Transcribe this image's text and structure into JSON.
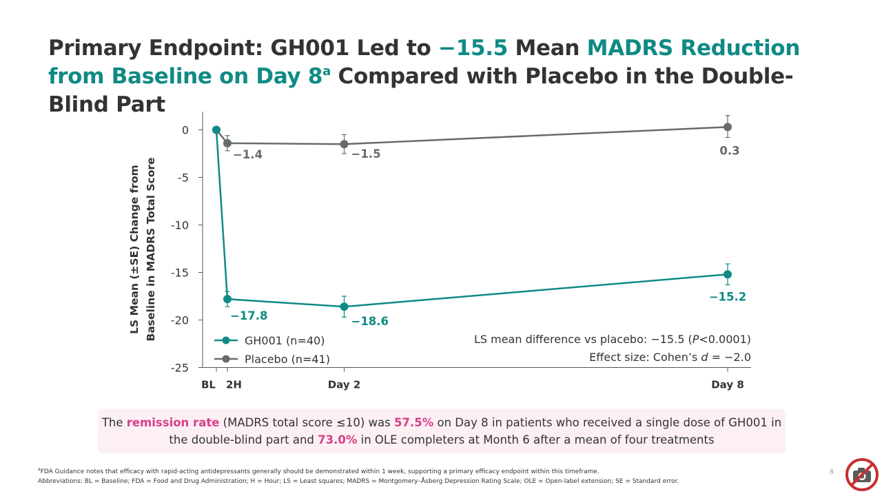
{
  "slide": {
    "title": {
      "part1": "Primary Endpoint: GH001 Led to ",
      "part2": "−15.5",
      "part3": " Mean ",
      "part4": "MADRS Reduction from Baseline on Day 8",
      "sup": "a",
      "part5": " Compared with Placebo in the Double-Blind Part"
    },
    "callout": {
      "t1": "The ",
      "t2": "remission rate",
      "t3": " (MADRS total score ≤10) was ",
      "t4": "57.5%",
      "t5": " on Day 8 in patients who received a single dose of GH001 in the double-blind part and ",
      "t6": "73.0%",
      "t7": " in OLE completers at Month 6 after a mean of four treatments"
    },
    "footnote_sup": "a",
    "footnote_a": "FDA Guidance notes that efficacy with rapid-acting antidepressants generally should be demonstrated within 1 week, supporting a primary efficacy endpoint within this timeframe.",
    "abbreviations": "Abbreviations: BL = Baseline; FDA = Food and Drug Administration; H = Hour; LS = Least squares; MADRS = Montgomery–Åsberg Depression Rating Scale; OLE = Open-label extension; SE = Standard error.",
    "page_number": "8",
    "badge_icon": "no-camera-icon",
    "colors": {
      "teal": "#0f8a84",
      "gray": "#666b6e",
      "pink": "#d6408a",
      "callout_bg": "#fcf0f4"
    }
  },
  "chart_data": {
    "type": "line",
    "ylabel_line1": "LS Mean (±SE) Change from",
    "ylabel_line2": "Baseline in MADRS Total Score",
    "ylim": [
      -25,
      0
    ],
    "yticks": [
      0,
      -5,
      -10,
      -15,
      -20,
      -25
    ],
    "ytick_labels": [
      "0",
      "-5",
      "-10",
      "-15",
      "-20",
      "-25"
    ],
    "categories": [
      "BL",
      "2H",
      "Day 2",
      "Day 8"
    ],
    "category_days": [
      0,
      0.083,
      2,
      8
    ],
    "series": [
      {
        "name": "GH001 (n=40)",
        "color": "#0f8a84",
        "values": [
          0,
          -17.8,
          -18.6,
          -15.2
        ],
        "se_low": [
          0,
          -18.6,
          -19.7,
          -16.3
        ],
        "se_high": [
          0,
          -17.0,
          -17.5,
          -14.1
        ],
        "labels": [
          "",
          "−17.8",
          "−18.6",
          "−15.2"
        ]
      },
      {
        "name": "Placebo (n=41)",
        "color": "#666b6e",
        "values": [
          0,
          -1.4,
          -1.5,
          0.3
        ],
        "se_low": [
          0,
          -2.2,
          -2.5,
          -0.8
        ],
        "se_high": [
          0,
          -0.6,
          -0.5,
          1.5
        ],
        "labels": [
          "",
          "−1.4",
          "−1.5",
          "0.3"
        ]
      }
    ],
    "annotation_line1": "LS mean difference vs placebo: −15.5 (",
    "annotation_p": "P",
    "annotation_line1_end": "<0.0001)",
    "annotation_line2": "Effect size: Cohen’s ",
    "annotation_d": "d",
    "annotation_line2_end": " = −2.0",
    "legend_position": "bottom-left",
    "grid": false
  }
}
